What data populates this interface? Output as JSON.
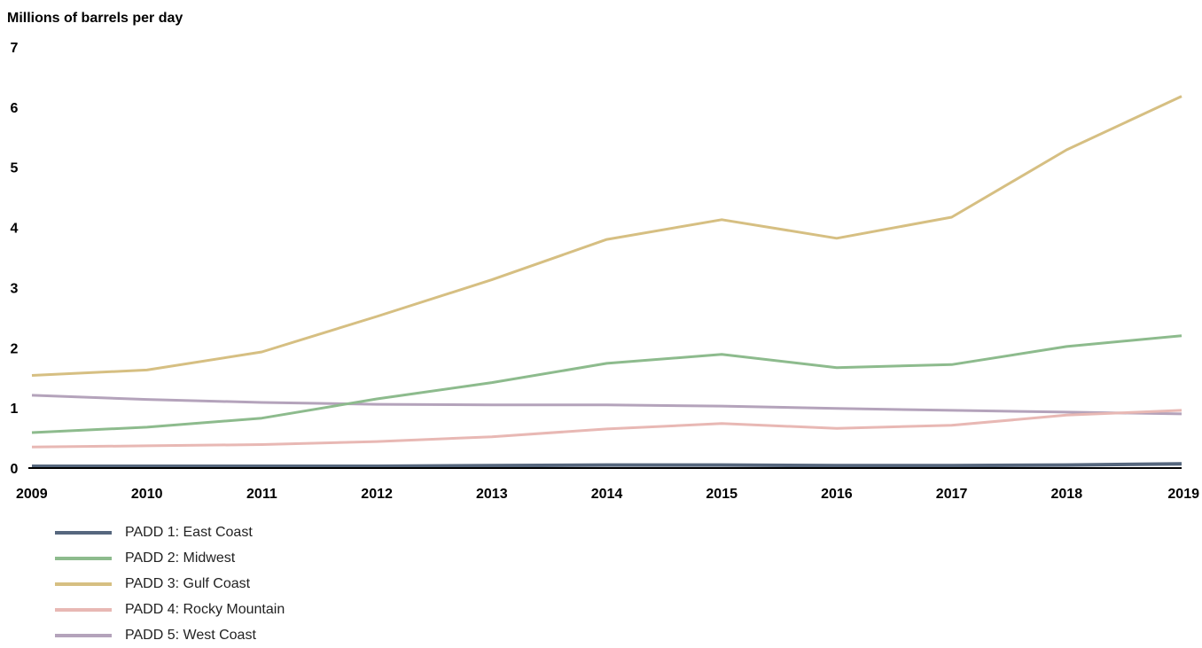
{
  "chart_data": {
    "type": "line",
    "ylabel": "Millions of barrels per day",
    "xlabel": "",
    "title": "",
    "x": [
      2009,
      2010,
      2011,
      2012,
      2013,
      2014,
      2015,
      2016,
      2017,
      2018,
      2019
    ],
    "ylim": [
      0,
      7
    ],
    "yticks": [
      0,
      1,
      2,
      3,
      4,
      5,
      6,
      7
    ],
    "grid": false,
    "legend_position": "bottom-left",
    "series": [
      {
        "name": "PADD 1: East Coast",
        "color": "#56677e",
        "values": [
          0.03,
          0.03,
          0.03,
          0.03,
          0.04,
          0.05,
          0.05,
          0.04,
          0.04,
          0.05,
          0.07
        ]
      },
      {
        "name": "PADD 2: Midwest",
        "color": "#8dbb8d",
        "values": [
          0.59,
          0.68,
          0.83,
          1.15,
          1.42,
          1.74,
          1.89,
          1.67,
          1.72,
          2.02,
          2.2
        ]
      },
      {
        "name": "PADD 3: Gulf Coast",
        "color": "#d6bf82",
        "values": [
          1.54,
          1.63,
          1.93,
          2.52,
          3.13,
          3.8,
          4.13,
          3.82,
          4.17,
          5.29,
          6.18
        ]
      },
      {
        "name": "PADD 4: Rocky Mountain",
        "color": "#e8b8b4",
        "values": [
          0.35,
          0.37,
          0.39,
          0.44,
          0.52,
          0.65,
          0.74,
          0.66,
          0.71,
          0.88,
          0.96
        ]
      },
      {
        "name": "PADD 5: West Coast",
        "color": "#b4a3bb",
        "values": [
          1.21,
          1.14,
          1.09,
          1.06,
          1.05,
          1.05,
          1.03,
          0.99,
          0.96,
          0.93,
          0.9
        ]
      }
    ]
  }
}
